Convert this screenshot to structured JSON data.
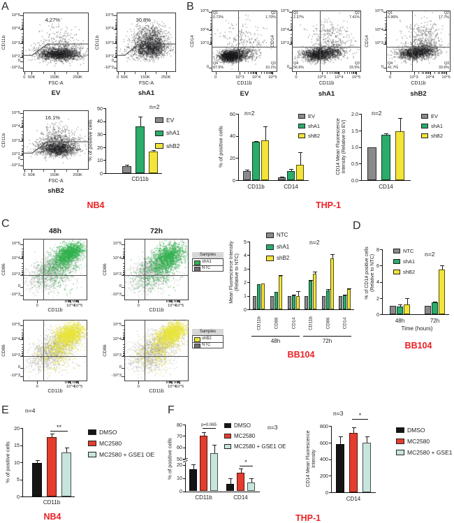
{
  "figure": {
    "panels": {
      "A": {
        "letter": "A",
        "cell_line": "NB4"
      },
      "B": {
        "letter": "B",
        "cell_line": "THP-1"
      },
      "C": {
        "letter": "C",
        "cell_line": "BB104",
        "col_titles": [
          "48h",
          "72h"
        ]
      },
      "D": {
        "letter": "D",
        "cell_line": "BB104"
      },
      "E": {
        "letter": "E",
        "cell_line": "NB4"
      },
      "F": {
        "letter": "F",
        "cell_line": "THP-1"
      }
    }
  },
  "colors": {
    "gray": "#8A8A8A",
    "green": "#2BAC6B",
    "yellow": "#F2E438",
    "black": "#151515",
    "red": "#E43D2E",
    "pale_teal": "#C6E5DC",
    "ntc_gray": "#6F6F6F",
    "red_label": "#ED2024",
    "dot": "#1B1B1E",
    "dot_gray": "#8F8F8F",
    "dot_green": "#2FB24C",
    "dot_yellow": "#E9E43B"
  },
  "legend_boxes": [
    {
      "header": "Samples",
      "items": [
        {
          "label": "shA1",
          "color": "dot_green"
        },
        {
          "label": "NTC",
          "color": "ntc_gray"
        }
      ]
    },
    {
      "header": "Samples",
      "items": [
        {
          "label": "shB2",
          "color": "dot_yellow"
        },
        {
          "label": "NTC",
          "color": "ntc_gray"
        }
      ]
    }
  ],
  "flow_plots": [
    {
      "panel": "A",
      "condition": "EV",
      "gate_pct": "4.27%",
      "xlabel": "FSC-A",
      "ylabel": "CD11b",
      "x_ticks": [
        "0",
        "50K",
        "150K",
        "250K"
      ],
      "y_ticks": [
        "10^5",
        "10^4",
        "10^3",
        "10^2",
        "0",
        "-10^2"
      ]
    },
    {
      "panel": "A",
      "condition": "shA1",
      "gate_pct": "30.8%",
      "xlabel": "FSC-A",
      "ylabel": "CD11b",
      "x_ticks": [
        "0",
        "50K",
        "150K",
        "250K"
      ],
      "y_ticks": [
        "10^5",
        "10^4",
        "10^3",
        "10^2",
        "0",
        "-10^2"
      ]
    },
    {
      "panel": "A",
      "condition": "shB2",
      "gate_pct": "16.1%",
      "xlabel": "FSC-A",
      "ylabel": "CD11b",
      "x_ticks": [
        "0",
        "50K",
        "150K",
        "250K"
      ],
      "y_ticks": [
        "10^5",
        "10^4",
        "10^3",
        "10^2",
        "0",
        "-10^2"
      ]
    },
    {
      "panel": "B",
      "condition": "EV",
      "xlabel": "CD11b",
      "ylabel": "CD14",
      "x_ticks": [
        "0",
        "10^3",
        "10^4",
        "10^5"
      ],
      "y_ticks": [
        "10^5",
        "10^4",
        "10^3",
        "0"
      ],
      "quadrants": [
        {
          "label": "Q1",
          "pct": "0.72%"
        },
        {
          "label": "Q2",
          "pct": "1.70%"
        },
        {
          "label": "Q3",
          "pct": "10.1%"
        },
        {
          "label": "Q4",
          "pct": "87.5%"
        }
      ]
    },
    {
      "panel": "B",
      "condition": "shA1",
      "xlabel": "CD11b",
      "ylabel": "CD14",
      "x_ticks": [
        "0",
        "10^3",
        "10^4",
        "10^5"
      ],
      "y_ticks": [
        "10^5",
        "10^4",
        "10^3",
        "0"
      ],
      "quadrants": [
        {
          "label": "Q1",
          "pct": "2.37%"
        },
        {
          "label": "Q2",
          "pct": "7.41%"
        },
        {
          "label": "Q3",
          "pct": "33.5%"
        },
        {
          "label": "Q4",
          "pct": "56.6%"
        }
      ]
    },
    {
      "panel": "B",
      "condition": "shB2",
      "xlabel": "CD11b",
      "ylabel": "CD14",
      "x_ticks": [
        "0",
        "10^3",
        "10^4",
        "10^5"
      ],
      "y_ticks": [
        "10^5",
        "10^4",
        "10^3",
        "0"
      ],
      "quadrants": [
        {
          "label": "Q1",
          "pct": "6.96%"
        },
        {
          "label": "Q2",
          "pct": "17.7%"
        },
        {
          "label": "Q3",
          "pct": "33.6%"
        },
        {
          "label": "Q4",
          "pct": "41.7%"
        }
      ]
    },
    {
      "panel": "C",
      "time": "48h",
      "overlay": "shA1",
      "xlabel": "CD11b",
      "ylabel": "CD86",
      "x_ticks": [
        "0",
        "10^4",
        "10^5"
      ],
      "y_ticks": [
        "10^5",
        "10^4",
        "10^3",
        "0",
        "-10^3"
      ]
    },
    {
      "panel": "C",
      "time": "72h",
      "overlay": "shA1",
      "xlabel": "CD11b",
      "ylabel": "CD86",
      "x_ticks": [
        "0",
        "10^4",
        "10^5"
      ],
      "y_ticks": [
        "10^5",
        "10^4",
        "10^3",
        "0",
        "-10^3"
      ]
    },
    {
      "panel": "C",
      "time": "48h",
      "overlay": "shB2",
      "xlabel": "CD11b",
      "ylabel": "CD86",
      "x_ticks": [
        "0",
        "10^4",
        "10^5"
      ],
      "y_ticks": [
        "10^5",
        "10^4",
        "10^3",
        "0",
        "-10^3"
      ]
    },
    {
      "panel": "C",
      "time": "72h",
      "overlay": "shB2",
      "xlabel": "CD11b",
      "ylabel": "CD86",
      "x_ticks": [
        "0",
        "10^4",
        "10^5"
      ],
      "y_ticks": [
        "10^5",
        "10^4",
        "10^3",
        "0",
        "-10^3"
      ]
    }
  ],
  "chart_data": [
    {
      "id": "A-bar",
      "type": "bar",
      "ylabel": "% of positive cells",
      "n_label": "n=2",
      "context": "NB4",
      "categories": [
        "CD11b"
      ],
      "ylim": [
        0,
        50
      ],
      "yticks": [
        [
          0,
          "0"
        ],
        [
          10,
          "10"
        ],
        [
          20,
          "20"
        ],
        [
          30,
          "30"
        ],
        [
          40,
          "40"
        ],
        [
          50,
          "50"
        ]
      ],
      "series": [
        {
          "name": "EV",
          "color": "gray",
          "values": [
            5.2
          ],
          "errors": [
            1.3
          ]
        },
        {
          "name": "shA1",
          "color": "green",
          "values": [
            36
          ],
          "errors": [
            7.5
          ]
        },
        {
          "name": "shB2",
          "color": "yellow",
          "values": [
            16.5
          ],
          "errors": [
            1
          ]
        }
      ]
    },
    {
      "id": "B-positive",
      "type": "bar",
      "ylabel": "% of positive cells",
      "n_label": "n=2",
      "context": "THP-1",
      "categories": [
        "CD11b",
        "CD14"
      ],
      "ylim": [
        0,
        60
      ],
      "yticks": [
        [
          0,
          "0"
        ],
        [
          20,
          "20"
        ],
        [
          40,
          "40"
        ],
        [
          60,
          "60"
        ]
      ],
      "series": [
        {
          "name": "EV",
          "color": "gray",
          "values": [
            8.5,
            2.5
          ],
          "errors": [
            0.8,
            0.8
          ]
        },
        {
          "name": "shA1",
          "color": "green",
          "values": [
            34.5,
            8.5
          ],
          "errors": [
            1,
            1.5
          ]
        },
        {
          "name": "shB2",
          "color": "yellow",
          "values": [
            36,
            14
          ],
          "errors": [
            12.5,
            11
          ]
        }
      ]
    },
    {
      "id": "B-mfi",
      "type": "bar",
      "ylabel": "CD14 Mean Fluorescence\nIntensity (Relative to EV)",
      "n_label": "n=2",
      "context": "THP-1",
      "categories": [
        "CD14"
      ],
      "ylim": [
        0,
        2
      ],
      "yticks": [
        [
          0,
          "0.0"
        ],
        [
          0.5,
          "0.5"
        ],
        [
          1,
          "1.0"
        ],
        [
          1.5,
          "1.5"
        ],
        [
          2,
          "2.0"
        ]
      ],
      "series": [
        {
          "name": "EV",
          "color": "gray",
          "values": [
            1.0
          ],
          "errors": [
            0
          ]
        },
        {
          "name": "shA1",
          "color": "green",
          "values": [
            1.37
          ],
          "errors": [
            0.04
          ]
        },
        {
          "name": "shB2",
          "color": "yellow",
          "values": [
            1.47
          ],
          "errors": [
            0.41
          ]
        }
      ]
    },
    {
      "id": "C-mfi",
      "type": "bar",
      "ylabel": "Mean Fluorescence Intensity\n(Relative to NTC)",
      "n_label": "n=2",
      "context": "BB104",
      "categories": [
        "CD11b",
        "CD86",
        "CD14",
        "CD11b",
        "CD86",
        "CD14"
      ],
      "group_labels": [
        "48h",
        "72h"
      ],
      "ylim": [
        0,
        5
      ],
      "yticks": [
        [
          0,
          "0"
        ],
        [
          1,
          "1"
        ],
        [
          2,
          "2"
        ],
        [
          3,
          "3"
        ],
        [
          4,
          "4"
        ],
        [
          5,
          "5"
        ]
      ],
      "series": [
        {
          "name": "NTC",
          "color": "gray",
          "values": [
            1,
            1,
            1,
            1,
            1,
            1
          ],
          "errors": [
            0,
            0,
            0,
            0,
            0,
            0
          ]
        },
        {
          "name": "shA1",
          "color": "green",
          "values": [
            1.88,
            1.27,
            1.02,
            2.12,
            1.38,
            1.03
          ],
          "errors": [
            0,
            0,
            0.05,
            0.07,
            0.12,
            0.04
          ]
        },
        {
          "name": "shB2",
          "color": "yellow",
          "values": [
            1.92,
            2.45,
            0.97,
            2.63,
            3.78,
            1.5
          ],
          "errors": [
            0,
            0.08,
            0.35,
            0.15,
            0.3,
            0.05
          ]
        }
      ]
    },
    {
      "id": "D-cd14",
      "type": "bar",
      "ylabel": "% of CD14 positive cells\n(Relative to NTC)",
      "xlabel": "Time (hours)",
      "n_label": "n=2",
      "context": "BB104",
      "categories": [
        "48h",
        "72h"
      ],
      "ylim": [
        0,
        8
      ],
      "yticks": [
        [
          0,
          "0"
        ],
        [
          2,
          "2"
        ],
        [
          4,
          "4"
        ],
        [
          6,
          "6"
        ],
        [
          8,
          "8"
        ]
      ],
      "series": [
        {
          "name": "NTC",
          "color": "gray",
          "values": [
            1,
            1
          ],
          "errors": [
            0,
            0
          ]
        },
        {
          "name": "shA1",
          "color": "green",
          "values": [
            0.95,
            1.45
          ],
          "errors": [
            0.25,
            0.1
          ]
        },
        {
          "name": "shB2",
          "color": "yellow",
          "values": [
            1.2,
            5.5
          ],
          "errors": [
            0.8,
            0.55
          ]
        }
      ]
    },
    {
      "id": "E-positive",
      "type": "bar",
      "ylabel": "% of positive cells",
      "n_label": "n=4",
      "context": "NB4",
      "categories": [
        "CD11b"
      ],
      "ylim": [
        0,
        20
      ],
      "yticks": [
        [
          0,
          "0"
        ],
        [
          5,
          "5"
        ],
        [
          10,
          "10"
        ],
        [
          15,
          "15"
        ],
        [
          20,
          "20"
        ]
      ],
      "annotations": [
        {
          "category": "CD11b",
          "text": "**"
        }
      ],
      "series": [
        {
          "name": "DMSO",
          "color": "black",
          "values": [
            9.8
          ],
          "errors": [
            0.9
          ]
        },
        {
          "name": "MC2580",
          "color": "red",
          "values": [
            17.4
          ],
          "errors": [
            1.0
          ]
        },
        {
          "name": "MC2580 + GSE1 OE",
          "color": "pale_teal",
          "values": [
            12.9
          ],
          "errors": [
            1.3
          ]
        }
      ]
    },
    {
      "id": "F-positive",
      "type": "bar",
      "ylabel": "% of positive cells",
      "n_label": "n=3",
      "context": "THP-1",
      "categories": [
        "CD11b",
        "CD14"
      ],
      "axis_break": {
        "lower": [
          0,
          20
        ],
        "upper": [
          50,
          80
        ]
      },
      "yticks_lower": [
        [
          0,
          "0"
        ],
        [
          10,
          "10"
        ],
        [
          20,
          "20"
        ]
      ],
      "yticks_upper": [
        [
          50,
          "50"
        ],
        [
          60,
          "60"
        ],
        [
          70,
          "70"
        ],
        [
          80,
          "80"
        ]
      ],
      "annotations": [
        {
          "category": "CD11b",
          "text": "p=0.065"
        },
        {
          "category": "CD14",
          "text": "*"
        }
      ],
      "series": [
        {
          "name": "DMSO",
          "color": "black",
          "values": [
            16.5,
            5.5
          ],
          "errors": [
            5,
            4
          ]
        },
        {
          "name": "MC2580",
          "color": "red",
          "values": [
            70.5,
            14
          ],
          "errors": [
            2.5,
            3
          ]
        },
        {
          "name": "MC2580 + GSE1 OE",
          "color": "pale_teal",
          "values": [
            55,
            6.5
          ],
          "errors": [
            7,
            3.5
          ]
        }
      ]
    },
    {
      "id": "F-mfi",
      "type": "bar",
      "ylabel": "CD14 Mean Fluorescence\nIntensity",
      "n_label": "n=3",
      "context": "THP-1",
      "categories": [
        "CD14"
      ],
      "ylim": [
        0,
        800
      ],
      "yticks": [
        [
          0,
          "0"
        ],
        [
          200,
          "200"
        ],
        [
          400,
          "400"
        ],
        [
          600,
          "600"
        ],
        [
          800,
          "800"
        ]
      ],
      "annotations": [
        {
          "category": "CD14",
          "text": "*"
        }
      ],
      "series": [
        {
          "name": "DMSO",
          "color": "black",
          "values": [
            580
          ],
          "errors": [
            95
          ]
        },
        {
          "name": "MC2580",
          "color": "red",
          "values": [
            715
          ],
          "errors": [
            70
          ]
        },
        {
          "name": "MC2580 + GSE1 OE",
          "color": "pale_teal",
          "values": [
            595
          ],
          "errors": [
            75
          ]
        }
      ]
    }
  ]
}
